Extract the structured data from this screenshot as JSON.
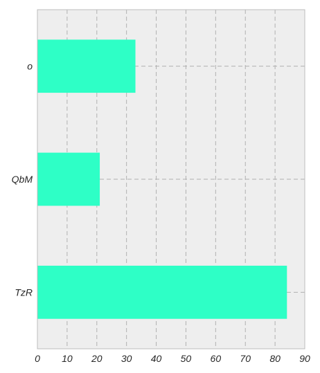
{
  "chart_data": {
    "type": "bar",
    "orientation": "horizontal",
    "categories": [
      "o",
      "QbM",
      "TzR"
    ],
    "values": [
      33,
      21,
      84
    ],
    "xlim": [
      0,
      90
    ],
    "xticks": [
      0,
      10,
      20,
      30,
      40,
      50,
      60,
      70,
      80,
      90
    ],
    "title": "",
    "xlabel": "",
    "ylabel": "",
    "grid": true,
    "bar_color": "#2effc6",
    "background_color": "#eeeeee",
    "grid_color": "#b0b0b0"
  }
}
